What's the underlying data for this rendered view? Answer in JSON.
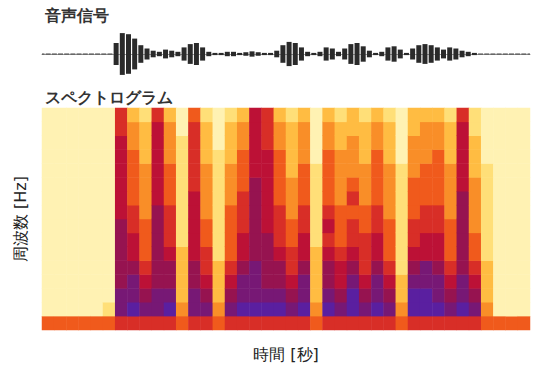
{
  "chart_data": [
    {
      "type": "waveform",
      "title": "音声信号",
      "ylim": [
        -1,
        1
      ],
      "tick_labels": false,
      "values": [
        0.02,
        0.02,
        0.02,
        0.02,
        0.02,
        0.02,
        0.02,
        0.02,
        0.02,
        0.02,
        0.02,
        0.02,
        0.5,
        0.95,
        0.9,
        0.7,
        0.4,
        0.25,
        0.15,
        0.1,
        0.2,
        0.15,
        0.1,
        0.3,
        0.45,
        0.5,
        0.3,
        0.1,
        0.05,
        0.05,
        0.1,
        0.1,
        0.05,
        0.08,
        0.12,
        0.08,
        0.05,
        0.05,
        0.15,
        0.4,
        0.55,
        0.5,
        0.3,
        0.1,
        0.05,
        0.1,
        0.3,
        0.25,
        0.1,
        0.25,
        0.45,
        0.5,
        0.35,
        0.15,
        0.05,
        0.1,
        0.3,
        0.35,
        0.2,
        0.05,
        0.25,
        0.4,
        0.45,
        0.4,
        0.3,
        0.2,
        0.3,
        0.25,
        0.15,
        0.1,
        0.05,
        0.02,
        0.02,
        0.02,
        0.02,
        0.02,
        0.02,
        0.02,
        0.02,
        0.02
      ]
    },
    {
      "type": "heatmap",
      "title": "スペクトログラム",
      "xlabel": "時間 [秒]",
      "ylabel": "周波数 [Hz]",
      "tick_labels": false,
      "color_range": [
        0,
        10
      ],
      "colors": [
        "#fffdf0",
        "#ffeb8a",
        "#ffb030",
        "#f05a1c",
        "#c8102e",
        "#8a1458",
        "#5a1fa0"
      ],
      "cells": [
        [
          5,
          1,
          1,
          1,
          1,
          1,
          1,
          1,
          1,
          1,
          1,
          1,
          1,
          1,
          1,
          1
        ],
        [
          5,
          1,
          1,
          1,
          1,
          1,
          1,
          1,
          1,
          1,
          1,
          1,
          1,
          1,
          1,
          1
        ],
        [
          5,
          1,
          1,
          1,
          1,
          1,
          1,
          1,
          1,
          1,
          1,
          1,
          1,
          1,
          1,
          1
        ],
        [
          5,
          1,
          1,
          1,
          1,
          1,
          1,
          1,
          1,
          1,
          1,
          1,
          1,
          1,
          1,
          1
        ],
        [
          5,
          1,
          1,
          1,
          1,
          1,
          1,
          1,
          1,
          1,
          1,
          1,
          1,
          1,
          1,
          1
        ],
        [
          5,
          2,
          1,
          1,
          1,
          1,
          1,
          1,
          1,
          1,
          1,
          1,
          1,
          1,
          1,
          1
        ],
        [
          6,
          9,
          9,
          8,
          8,
          8,
          8,
          8,
          7,
          7,
          7,
          7,
          7,
          7,
          6,
          6
        ],
        [
          6,
          10,
          9,
          9,
          8,
          7,
          7,
          6,
          6,
          5,
          5,
          5,
          5,
          4,
          4,
          3
        ],
        [
          6,
          9,
          8,
          7,
          6,
          5,
          5,
          5,
          4,
          4,
          4,
          4,
          3,
          3,
          3,
          2
        ],
        [
          6,
          9,
          9,
          8,
          8,
          8,
          8,
          8,
          8,
          7,
          7,
          7,
          7,
          7,
          7,
          6
        ],
        [
          6,
          10,
          9,
          8,
          8,
          7,
          6,
          6,
          6,
          5,
          5,
          5,
          4,
          4,
          4,
          3
        ],
        [
          5,
          4,
          3,
          3,
          3,
          3,
          2,
          2,
          2,
          2,
          2,
          2,
          2,
          2,
          1,
          1
        ],
        [
          6,
          9,
          9,
          8,
          8,
          7,
          7,
          7,
          7,
          7,
          6,
          6,
          6,
          6,
          6,
          5
        ],
        [
          6,
          9,
          8,
          7,
          6,
          6,
          5,
          5,
          4,
          4,
          4,
          4,
          3,
          3,
          3,
          2
        ],
        [
          5,
          4,
          3,
          3,
          3,
          2,
          2,
          2,
          2,
          2,
          2,
          2,
          2,
          1,
          1,
          1
        ],
        [
          6,
          9,
          8,
          7,
          6,
          5,
          5,
          5,
          5,
          4,
          4,
          4,
          3,
          3,
          3,
          2
        ],
        [
          6,
          10,
          9,
          9,
          8,
          7,
          7,
          6,
          6,
          6,
          5,
          5,
          5,
          4,
          4,
          3
        ],
        [
          6,
          10,
          9,
          9,
          9,
          8,
          8,
          8,
          8,
          8,
          8,
          7,
          7,
          7,
          7,
          7
        ],
        [
          6,
          10,
          9,
          8,
          8,
          8,
          8,
          7,
          7,
          7,
          7,
          7,
          7,
          6,
          6,
          6
        ],
        [
          6,
          10,
          9,
          8,
          8,
          7,
          6,
          6,
          6,
          5,
          5,
          5,
          5,
          4,
          4,
          3
        ],
        [
          6,
          9,
          8,
          7,
          6,
          6,
          5,
          5,
          4,
          4,
          4,
          3,
          3,
          3,
          3,
          2
        ],
        [
          6,
          10,
          9,
          9,
          8,
          7,
          7,
          6,
          6,
          5,
          5,
          5,
          4,
          4,
          4,
          3
        ],
        [
          5,
          4,
          3,
          3,
          3,
          3,
          2,
          2,
          2,
          2,
          2,
          2,
          1,
          1,
          1,
          1
        ],
        [
          6,
          10,
          9,
          8,
          8,
          7,
          6,
          7,
          6,
          5,
          5,
          5,
          5,
          4,
          4,
          3
        ],
        [
          6,
          9,
          8,
          7,
          7,
          6,
          5,
          5,
          5,
          4,
          4,
          4,
          4,
          3,
          3,
          2
        ],
        [
          6,
          10,
          10,
          9,
          8,
          7,
          6,
          6,
          5,
          6,
          5,
          4,
          4,
          4,
          3,
          3
        ],
        [
          6,
          9,
          8,
          7,
          6,
          6,
          6,
          5,
          5,
          4,
          4,
          4,
          3,
          3,
          3,
          2
        ],
        [
          6,
          10,
          9,
          9,
          8,
          7,
          7,
          6,
          6,
          5,
          5,
          5,
          5,
          4,
          4,
          3
        ],
        [
          6,
          9,
          8,
          7,
          6,
          5,
          5,
          5,
          4,
          4,
          4,
          4,
          3,
          3,
          3,
          2
        ],
        [
          5,
          4,
          3,
          3,
          2,
          2,
          2,
          2,
          2,
          2,
          2,
          2,
          1,
          1,
          1,
          1
        ],
        [
          6,
          10,
          10,
          9,
          8,
          7,
          6,
          6,
          5,
          5,
          5,
          4,
          4,
          4,
          3,
          3
        ],
        [
          6,
          10,
          10,
          9,
          9,
          7,
          7,
          6,
          6,
          5,
          5,
          5,
          4,
          4,
          4,
          3
        ],
        [
          6,
          10,
          9,
          9,
          8,
          7,
          7,
          6,
          6,
          5,
          5,
          5,
          5,
          4,
          4,
          3
        ],
        [
          6,
          9,
          8,
          7,
          6,
          5,
          5,
          5,
          4,
          4,
          4,
          4,
          3,
          3,
          3,
          2
        ],
        [
          6,
          10,
          9,
          9,
          8,
          8,
          8,
          8,
          8,
          8,
          7,
          7,
          7,
          7,
          7,
          6
        ],
        [
          6,
          9,
          8,
          7,
          6,
          5,
          5,
          4,
          4,
          4,
          4,
          3,
          3,
          3,
          2,
          2
        ],
        [
          5,
          4,
          3,
          3,
          3,
          2,
          2,
          2,
          2,
          2,
          2,
          2,
          1,
          1,
          1,
          1
        ],
        [
          5,
          1,
          1,
          1,
          1,
          1,
          1,
          1,
          1,
          1,
          1,
          1,
          1,
          1,
          1,
          1
        ],
        [
          5,
          1,
          1,
          1,
          1,
          1,
          1,
          1,
          1,
          1,
          1,
          1,
          1,
          1,
          1,
          1
        ],
        [
          5,
          1,
          1,
          1,
          1,
          1,
          1,
          1,
          1,
          1,
          1,
          1,
          1,
          1,
          1,
          1
        ]
      ]
    }
  ]
}
